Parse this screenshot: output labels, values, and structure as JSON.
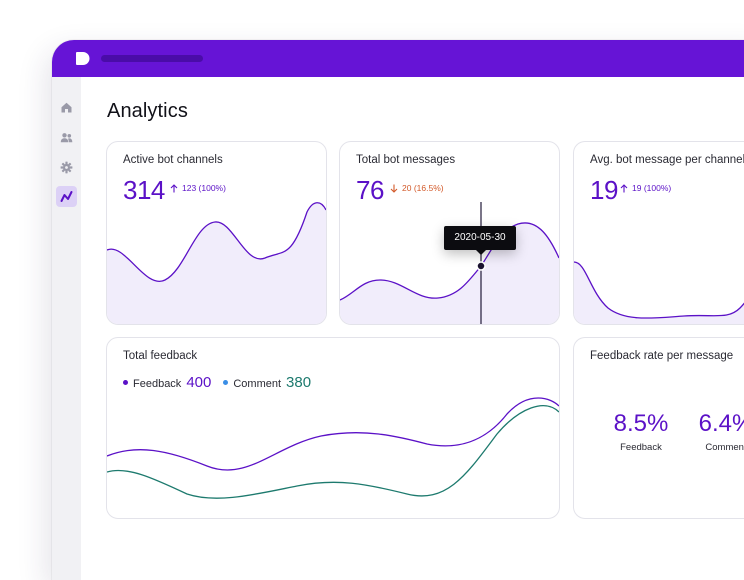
{
  "app": {
    "title": "Analytics"
  },
  "sidebar": {
    "items": [
      {
        "icon": "home-icon"
      },
      {
        "icon": "users-icon"
      },
      {
        "icon": "gear-icon"
      },
      {
        "icon": "analytics-icon",
        "active": true
      }
    ]
  },
  "cards": {
    "active_channels": {
      "title": "Active bot channels",
      "value": "314",
      "delta": "123 (100%)",
      "direction": "up"
    },
    "total_messages": {
      "title": "Total bot messages",
      "value": "76",
      "delta": "20 (16.5%)",
      "direction": "down",
      "tooltip_date": "2020-05-30"
    },
    "avg_messages": {
      "title": "Avg. bot message per channel",
      "value": "19",
      "delta": "19 (100%)",
      "direction": "up"
    },
    "total_feedback": {
      "title": "Total feedback",
      "feedback_label": "Feedback",
      "feedback_value": "400",
      "comment_label": "Comment",
      "comment_value": "380"
    },
    "feedback_rate": {
      "title": "Feedback rate per message",
      "feedback_pct": "8.5%",
      "feedback_label": "Feedback",
      "comment_pct": "6.4%",
      "comment_label": "Comment"
    }
  },
  "colors": {
    "brand": "#6614d6",
    "accent": "#5b11c7",
    "down": "#d35a2a",
    "comment": "#1d7a6e",
    "comment_dot": "#3a8ee6",
    "fill": "#f1edfb"
  }
}
